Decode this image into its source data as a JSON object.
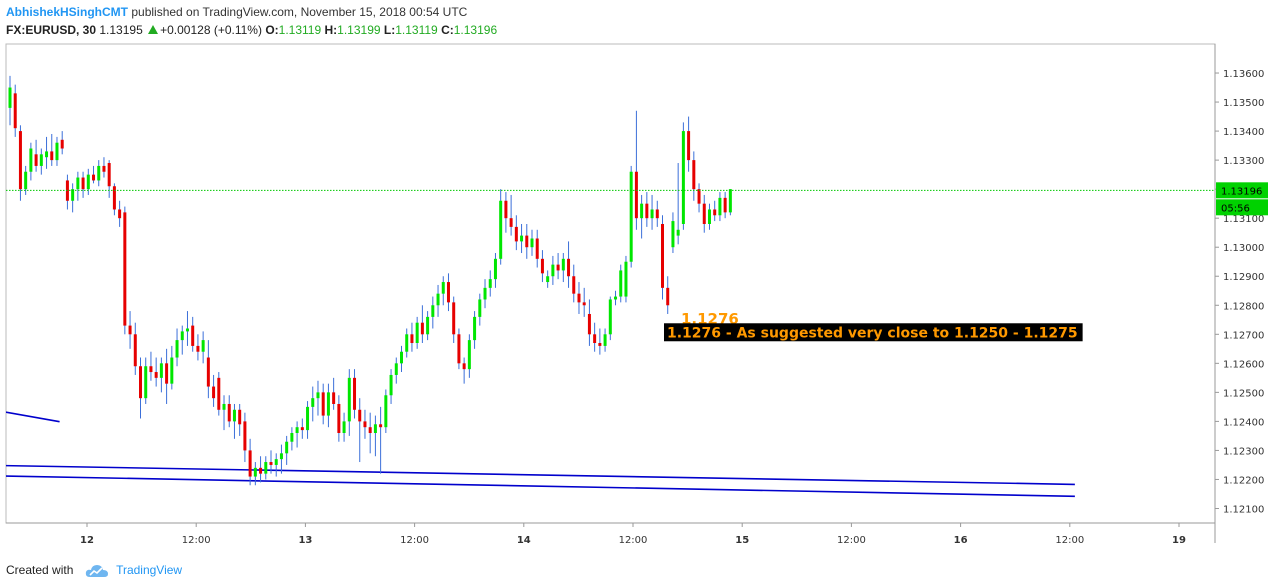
{
  "header": {
    "author": "AbhishekHSinghCMT",
    "published": "published on TradingView.com, November 15, 2018 00:54 UTC"
  },
  "quote": {
    "symbol": "FX:EURUSD, 30",
    "last": "1.13195",
    "change": "+0.00128 (+0.11%)",
    "o_label": "O:",
    "o": "1.13119",
    "h_label": "H:",
    "h": "1.13199",
    "l_label": "L:",
    "l": "1.13119",
    "c_label": "C:",
    "c": "1.13196"
  },
  "footer": {
    "created_with": "Created with",
    "brand": "TradingView"
  },
  "colors": {
    "up": "#00e600",
    "down": "#e60000",
    "wick": "#3b6fd9",
    "trendline": "#0000cc",
    "price_line": "#00c800",
    "annotation": "#ff9900",
    "annotation_bg": "#000000"
  },
  "chart_data": {
    "type": "candlestick",
    "symbol": "FX:EURUSD",
    "interval": "30",
    "y_ticks": [
      "1.13600",
      "1.13500",
      "1.13400",
      "1.13300",
      "1.13200",
      "1.13100",
      "1.13000",
      "1.12900",
      "1.12800",
      "1.12700",
      "1.12600",
      "1.12500",
      "1.12400",
      "1.12300",
      "1.12200",
      "1.12100"
    ],
    "x_ticks": [
      "12",
      "12:00",
      "13",
      "12:00",
      "14",
      "12:00",
      "15",
      "12:00",
      "16",
      "12:00",
      "19"
    ],
    "ylim": [
      1.1205,
      1.137
    ],
    "last_price_label": "1.13196",
    "countdown_label": "05:56",
    "last_price": 1.13196,
    "annotations": {
      "low_label": "1.1276",
      "low_value": 1.1276,
      "note": "1.1276 - As suggested very close to 1.1250 - 1.1275"
    },
    "trendlines": [
      {
        "x1": -1.8,
        "y1": 1.12435,
        "x2": 9.5,
        "y2": 1.12399
      },
      {
        "x1": -1.8,
        "y1": 1.12248,
        "x2": 204,
        "y2": 1.12183
      },
      {
        "x1": -1.8,
        "y1": 1.12212,
        "x2": 204,
        "y2": 1.12142
      }
    ],
    "candles": [
      {
        "o": 1.1348,
        "h": 1.1359,
        "l": 1.1342,
        "c": 1.1355
      },
      {
        "o": 1.1353,
        "h": 1.1356,
        "l": 1.1338,
        "c": 1.1341
      },
      {
        "o": 1.134,
        "h": 1.1342,
        "l": 1.1316,
        "c": 1.132
      },
      {
        "o": 1.132,
        "h": 1.1328,
        "l": 1.1318,
        "c": 1.1326
      },
      {
        "o": 1.1326,
        "h": 1.1336,
        "l": 1.1323,
        "c": 1.1334
      },
      {
        "o": 1.1332,
        "h": 1.1337,
        "l": 1.1326,
        "c": 1.1328
      },
      {
        "o": 1.1328,
        "h": 1.1334,
        "l": 1.1325,
        "c": 1.1332
      },
      {
        "o": 1.1331,
        "h": 1.1338,
        "l": 1.1327,
        "c": 1.1333
      },
      {
        "o": 1.1333,
        "h": 1.1339,
        "l": 1.1328,
        "c": 1.133
      },
      {
        "o": 1.133,
        "h": 1.1338,
        "l": 1.1328,
        "c": 1.1336
      },
      {
        "o": 1.1337,
        "h": 1.134,
        "l": 1.1332,
        "c": 1.1334
      },
      {
        "o": 1.1323,
        "h": 1.1325,
        "l": 1.1313,
        "c": 1.1316
      },
      {
        "o": 1.1316,
        "h": 1.1322,
        "l": 1.1312,
        "c": 1.132
      },
      {
        "o": 1.132,
        "h": 1.1326,
        "l": 1.1316,
        "c": 1.1324
      },
      {
        "o": 1.1324,
        "h": 1.1326,
        "l": 1.1317,
        "c": 1.132
      },
      {
        "o": 1.132,
        "h": 1.1327,
        "l": 1.1318,
        "c": 1.1325
      },
      {
        "o": 1.1325,
        "h": 1.1328,
        "l": 1.1322,
        "c": 1.1323
      },
      {
        "o": 1.1323,
        "h": 1.133,
        "l": 1.1321,
        "c": 1.1328
      },
      {
        "o": 1.1328,
        "h": 1.1331,
        "l": 1.1324,
        "c": 1.1326
      },
      {
        "o": 1.1329,
        "h": 1.133,
        "l": 1.1317,
        "c": 1.1321
      },
      {
        "o": 1.1321,
        "h": 1.1322,
        "l": 1.1311,
        "c": 1.1313
      },
      {
        "o": 1.1313,
        "h": 1.1316,
        "l": 1.1307,
        "c": 1.131
      },
      {
        "o": 1.1312,
        "h": 1.1314,
        "l": 1.127,
        "c": 1.1273
      },
      {
        "o": 1.1273,
        "h": 1.1278,
        "l": 1.1265,
        "c": 1.127
      },
      {
        "o": 1.127,
        "h": 1.1274,
        "l": 1.1256,
        "c": 1.1259
      },
      {
        "o": 1.1259,
        "h": 1.1262,
        "l": 1.1241,
        "c": 1.1248
      },
      {
        "o": 1.1248,
        "h": 1.1262,
        "l": 1.1246,
        "c": 1.1259
      },
      {
        "o": 1.1259,
        "h": 1.1264,
        "l": 1.1254,
        "c": 1.1257
      },
      {
        "o": 1.1257,
        "h": 1.1262,
        "l": 1.1252,
        "c": 1.1255
      },
      {
        "o": 1.1255,
        "h": 1.1262,
        "l": 1.125,
        "c": 1.126
      },
      {
        "o": 1.126,
        "h": 1.1265,
        "l": 1.1246,
        "c": 1.1253
      },
      {
        "o": 1.1253,
        "h": 1.1266,
        "l": 1.1251,
        "c": 1.1262
      },
      {
        "o": 1.1262,
        "h": 1.1272,
        "l": 1.1259,
        "c": 1.1268
      },
      {
        "o": 1.1268,
        "h": 1.1273,
        "l": 1.1263,
        "c": 1.1271
      },
      {
        "o": 1.1271,
        "h": 1.1278,
        "l": 1.1266,
        "c": 1.1272
      },
      {
        "o": 1.1273,
        "h": 1.1276,
        "l": 1.1264,
        "c": 1.1266
      },
      {
        "o": 1.1266,
        "h": 1.127,
        "l": 1.1261,
        "c": 1.1264
      },
      {
        "o": 1.1264,
        "h": 1.1271,
        "l": 1.126,
        "c": 1.1268
      },
      {
        "o": 1.1262,
        "h": 1.1268,
        "l": 1.1248,
        "c": 1.1252
      },
      {
        "o": 1.1252,
        "h": 1.1256,
        "l": 1.1245,
        "c": 1.1248
      },
      {
        "o": 1.1255,
        "h": 1.1257,
        "l": 1.1242,
        "c": 1.1244
      },
      {
        "o": 1.1244,
        "h": 1.1249,
        "l": 1.1237,
        "c": 1.1246
      },
      {
        "o": 1.1246,
        "h": 1.1249,
        "l": 1.1238,
        "c": 1.124
      },
      {
        "o": 1.124,
        "h": 1.1246,
        "l": 1.1234,
        "c": 1.1244
      },
      {
        "o": 1.1244,
        "h": 1.1246,
        "l": 1.1235,
        "c": 1.1239
      },
      {
        "o": 1.124,
        "h": 1.1243,
        "l": 1.1226,
        "c": 1.123
      },
      {
        "o": 1.123,
        "h": 1.1234,
        "l": 1.1218,
        "c": 1.1221
      },
      {
        "o": 1.1221,
        "h": 1.1226,
        "l": 1.1218,
        "c": 1.1224
      },
      {
        "o": 1.1224,
        "h": 1.1228,
        "l": 1.1219,
        "c": 1.1222
      },
      {
        "o": 1.1222,
        "h": 1.1228,
        "l": 1.122,
        "c": 1.1226
      },
      {
        "o": 1.1226,
        "h": 1.123,
        "l": 1.1222,
        "c": 1.1225
      },
      {
        "o": 1.1225,
        "h": 1.1229,
        "l": 1.1221,
        "c": 1.1227
      },
      {
        "o": 1.1227,
        "h": 1.1232,
        "l": 1.1222,
        "c": 1.1229
      },
      {
        "o": 1.1229,
        "h": 1.1235,
        "l": 1.1225,
        "c": 1.1233
      },
      {
        "o": 1.1233,
        "h": 1.1238,
        "l": 1.123,
        "c": 1.1236
      },
      {
        "o": 1.1236,
        "h": 1.124,
        "l": 1.1231,
        "c": 1.1238
      },
      {
        "o": 1.1238,
        "h": 1.1241,
        "l": 1.1234,
        "c": 1.1237
      },
      {
        "o": 1.1237,
        "h": 1.1247,
        "l": 1.1234,
        "c": 1.1245
      },
      {
        "o": 1.1245,
        "h": 1.1252,
        "l": 1.124,
        "c": 1.1248
      },
      {
        "o": 1.1248,
        "h": 1.1254,
        "l": 1.1242,
        "c": 1.125
      },
      {
        "o": 1.125,
        "h": 1.1253,
        "l": 1.1239,
        "c": 1.1242
      },
      {
        "o": 1.1242,
        "h": 1.1253,
        "l": 1.1238,
        "c": 1.125
      },
      {
        "o": 1.125,
        "h": 1.1255,
        "l": 1.1244,
        "c": 1.1246
      },
      {
        "o": 1.1246,
        "h": 1.1249,
        "l": 1.1233,
        "c": 1.1236
      },
      {
        "o": 1.1236,
        "h": 1.1243,
        "l": 1.1233,
        "c": 1.124
      },
      {
        "o": 1.124,
        "h": 1.1258,
        "l": 1.1235,
        "c": 1.1255
      },
      {
        "o": 1.1255,
        "h": 1.1258,
        "l": 1.1241,
        "c": 1.1244
      },
      {
        "o": 1.1244,
        "h": 1.1248,
        "l": 1.1226,
        "c": 1.124
      },
      {
        "o": 1.124,
        "h": 1.1244,
        "l": 1.1234,
        "c": 1.1238
      },
      {
        "o": 1.1238,
        "h": 1.1243,
        "l": 1.1229,
        "c": 1.1236
      },
      {
        "o": 1.1236,
        "h": 1.1242,
        "l": 1.1228,
        "c": 1.1239
      },
      {
        "o": 1.1239,
        "h": 1.1245,
        "l": 1.1222,
        "c": 1.1238
      },
      {
        "o": 1.1238,
        "h": 1.1251,
        "l": 1.1236,
        "c": 1.1249
      },
      {
        "o": 1.1249,
        "h": 1.1258,
        "l": 1.1246,
        "c": 1.1256
      },
      {
        "o": 1.1256,
        "h": 1.1262,
        "l": 1.1253,
        "c": 1.126
      },
      {
        "o": 1.126,
        "h": 1.1266,
        "l": 1.1257,
        "c": 1.1264
      },
      {
        "o": 1.1264,
        "h": 1.1272,
        "l": 1.1262,
        "c": 1.127
      },
      {
        "o": 1.127,
        "h": 1.1274,
        "l": 1.1264,
        "c": 1.1267
      },
      {
        "o": 1.1267,
        "h": 1.1276,
        "l": 1.1265,
        "c": 1.1274
      },
      {
        "o": 1.1274,
        "h": 1.128,
        "l": 1.1267,
        "c": 1.127
      },
      {
        "o": 1.127,
        "h": 1.1278,
        "l": 1.1268,
        "c": 1.1276
      },
      {
        "o": 1.1276,
        "h": 1.1283,
        "l": 1.1272,
        "c": 1.128
      },
      {
        "o": 1.128,
        "h": 1.1287,
        "l": 1.1276,
        "c": 1.1284
      },
      {
        "o": 1.1284,
        "h": 1.129,
        "l": 1.128,
        "c": 1.1288
      },
      {
        "o": 1.1288,
        "h": 1.1291,
        "l": 1.1278,
        "c": 1.1281
      },
      {
        "o": 1.1281,
        "h": 1.1283,
        "l": 1.1267,
        "c": 1.127
      },
      {
        "o": 1.127,
        "h": 1.1272,
        "l": 1.1258,
        "c": 1.126
      },
      {
        "o": 1.126,
        "h": 1.1262,
        "l": 1.1253,
        "c": 1.1258
      },
      {
        "o": 1.1258,
        "h": 1.127,
        "l": 1.1255,
        "c": 1.1268
      },
      {
        "o": 1.1268,
        "h": 1.1278,
        "l": 1.1265,
        "c": 1.1276
      },
      {
        "o": 1.1276,
        "h": 1.1284,
        "l": 1.1273,
        "c": 1.1282
      },
      {
        "o": 1.1282,
        "h": 1.1289,
        "l": 1.1279,
        "c": 1.1286
      },
      {
        "o": 1.1286,
        "h": 1.1292,
        "l": 1.1283,
        "c": 1.1289
      },
      {
        "o": 1.1289,
        "h": 1.1298,
        "l": 1.1286,
        "c": 1.1296
      },
      {
        "o": 1.1296,
        "h": 1.132,
        "l": 1.1294,
        "c": 1.1316
      },
      {
        "o": 1.1316,
        "h": 1.1319,
        "l": 1.1305,
        "c": 1.131
      },
      {
        "o": 1.131,
        "h": 1.1318,
        "l": 1.1304,
        "c": 1.1307
      },
      {
        "o": 1.1307,
        "h": 1.1311,
        "l": 1.1299,
        "c": 1.1302
      },
      {
        "o": 1.1302,
        "h": 1.1308,
        "l": 1.1298,
        "c": 1.1304
      },
      {
        "o": 1.1304,
        "h": 1.1308,
        "l": 1.1296,
        "c": 1.13
      },
      {
        "o": 1.13,
        "h": 1.1306,
        "l": 1.1297,
        "c": 1.1303
      },
      {
        "o": 1.1303,
        "h": 1.1306,
        "l": 1.1293,
        "c": 1.1296
      },
      {
        "o": 1.1296,
        "h": 1.1299,
        "l": 1.1288,
        "c": 1.1291
      },
      {
        "o": 1.1288,
        "h": 1.1292,
        "l": 1.1286,
        "c": 1.129
      },
      {
        "o": 1.129,
        "h": 1.1297,
        "l": 1.1287,
        "c": 1.1294
      },
      {
        "o": 1.1294,
        "h": 1.1298,
        "l": 1.1289,
        "c": 1.1292
      },
      {
        "o": 1.1292,
        "h": 1.1298,
        "l": 1.1288,
        "c": 1.1296
      },
      {
        "o": 1.1296,
        "h": 1.1302,
        "l": 1.1286,
        "c": 1.129
      },
      {
        "o": 1.129,
        "h": 1.1294,
        "l": 1.1281,
        "c": 1.1284
      },
      {
        "o": 1.1284,
        "h": 1.1288,
        "l": 1.1277,
        "c": 1.1281
      },
      {
        "o": 1.1281,
        "h": 1.1286,
        "l": 1.1276,
        "c": 1.128
      },
      {
        "o": 1.1277,
        "h": 1.1282,
        "l": 1.1266,
        "c": 1.127
      },
      {
        "o": 1.127,
        "h": 1.1274,
        "l": 1.1264,
        "c": 1.1267
      },
      {
        "o": 1.1267,
        "h": 1.1272,
        "l": 1.1263,
        "c": 1.1266
      },
      {
        "o": 1.1266,
        "h": 1.1272,
        "l": 1.1264,
        "c": 1.127
      },
      {
        "o": 1.127,
        "h": 1.1283,
        "l": 1.1268,
        "c": 1.1282
      },
      {
        "o": 1.1282,
        "h": 1.1285,
        "l": 1.128,
        "c": 1.1283
      },
      {
        "o": 1.1283,
        "h": 1.1294,
        "l": 1.1281,
        "c": 1.1292
      },
      {
        "o": 1.1283,
        "h": 1.1297,
        "l": 1.1281,
        "c": 1.1295
      },
      {
        "o": 1.1295,
        "h": 1.1328,
        "l": 1.1293,
        "c": 1.1326
      },
      {
        "o": 1.1326,
        "h": 1.1347,
        "l": 1.1306,
        "c": 1.131
      },
      {
        "o": 1.131,
        "h": 1.1318,
        "l": 1.1303,
        "c": 1.1315
      },
      {
        "o": 1.1315,
        "h": 1.1319,
        "l": 1.1307,
        "c": 1.131
      },
      {
        "o": 1.131,
        "h": 1.1318,
        "l": 1.1306,
        "c": 1.1313
      },
      {
        "o": 1.1313,
        "h": 1.1316,
        "l": 1.1307,
        "c": 1.131
      },
      {
        "o": 1.1308,
        "h": 1.1311,
        "l": 1.1282,
        "c": 1.1286
      },
      {
        "o": 1.1286,
        "h": 1.129,
        "l": 1.1277,
        "c": 1.128
      },
      {
        "o": 1.13,
        "h": 1.1312,
        "l": 1.1298,
        "c": 1.1309
      },
      {
        "o": 1.1304,
        "h": 1.1329,
        "l": 1.1301,
        "c": 1.1306
      },
      {
        "o": 1.1308,
        "h": 1.1343,
        "l": 1.1306,
        "c": 1.134
      },
      {
        "o": 1.134,
        "h": 1.1345,
        "l": 1.1326,
        "c": 1.133
      },
      {
        "o": 1.133,
        "h": 1.1333,
        "l": 1.1316,
        "c": 1.132
      },
      {
        "o": 1.132,
        "h": 1.1322,
        "l": 1.1312,
        "c": 1.1315
      },
      {
        "o": 1.1315,
        "h": 1.1318,
        "l": 1.1305,
        "c": 1.1308
      },
      {
        "o": 1.1308,
        "h": 1.1315,
        "l": 1.1306,
        "c": 1.1313
      },
      {
        "o": 1.1313,
        "h": 1.1316,
        "l": 1.1309,
        "c": 1.1311
      },
      {
        "o": 1.1311,
        "h": 1.1319,
        "l": 1.1309,
        "c": 1.1317
      },
      {
        "o": 1.1317,
        "h": 1.1319,
        "l": 1.131,
        "c": 1.1312
      },
      {
        "o": 1.1312,
        "h": 1.132,
        "l": 1.1311,
        "c": 1.132
      }
    ]
  }
}
